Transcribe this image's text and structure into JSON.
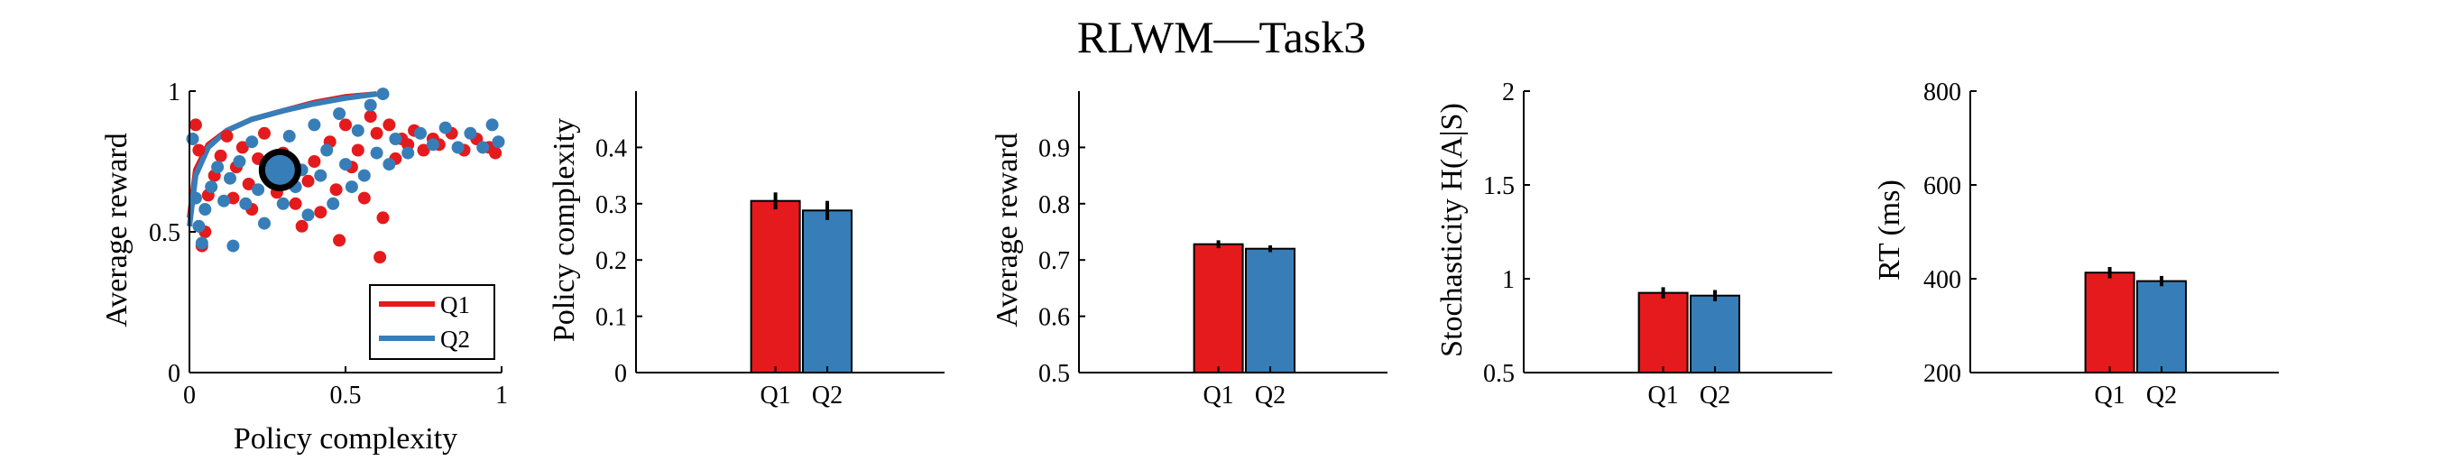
{
  "figure": {
    "title": "RLWM—Task3"
  },
  "colors": {
    "Q1": "#E41A1C",
    "Q2": "#377EB8",
    "marker": "#000000"
  },
  "chart_data": [
    {
      "type": "scatter",
      "xlabel": "Policy complexity",
      "ylabel": "Average reward",
      "xlim": [
        0,
        1
      ],
      "ylim": [
        0,
        1
      ],
      "xticks": [
        "0",
        "0.5",
        "1"
      ],
      "yticks": [
        "0",
        "0.5",
        "1"
      ],
      "legend": {
        "position": "bottom-right",
        "entries": [
          "Q1",
          "Q2"
        ]
      },
      "mean_marker": {
        "x": 0.29,
        "y": 0.72
      },
      "curves": [
        {
          "name": "Q1",
          "points": [
            [
              0.0,
              0.55
            ],
            [
              0.02,
              0.72
            ],
            [
              0.06,
              0.81
            ],
            [
              0.12,
              0.86
            ],
            [
              0.2,
              0.9
            ],
            [
              0.3,
              0.93
            ],
            [
              0.4,
              0.96
            ],
            [
              0.5,
              0.98
            ],
            [
              0.6,
              0.99
            ]
          ]
        },
        {
          "name": "Q2",
          "points": [
            [
              0.0,
              0.52
            ],
            [
              0.02,
              0.7
            ],
            [
              0.06,
              0.8
            ],
            [
              0.12,
              0.86
            ],
            [
              0.2,
              0.9
            ],
            [
              0.3,
              0.93
            ],
            [
              0.4,
              0.955
            ],
            [
              0.5,
              0.975
            ],
            [
              0.6,
              0.99
            ]
          ]
        }
      ],
      "series": [
        {
          "name": "Q1",
          "points": [
            [
              0.02,
              0.88
            ],
            [
              0.03,
              0.79
            ],
            [
              0.04,
              0.45
            ],
            [
              0.05,
              0.5
            ],
            [
              0.06,
              0.63
            ],
            [
              0.08,
              0.7
            ],
            [
              0.1,
              0.77
            ],
            [
              0.12,
              0.84
            ],
            [
              0.14,
              0.62
            ],
            [
              0.15,
              0.73
            ],
            [
              0.17,
              0.8
            ],
            [
              0.19,
              0.67
            ],
            [
              0.2,
              0.58
            ],
            [
              0.22,
              0.76
            ],
            [
              0.24,
              0.85
            ],
            [
              0.26,
              0.69
            ],
            [
              0.28,
              0.64
            ],
            [
              0.3,
              0.78
            ],
            [
              0.32,
              0.71
            ],
            [
              0.34,
              0.6
            ],
            [
              0.36,
              0.52
            ],
            [
              0.38,
              0.68
            ],
            [
              0.4,
              0.75
            ],
            [
              0.42,
              0.57
            ],
            [
              0.45,
              0.82
            ],
            [
              0.47,
              0.65
            ],
            [
              0.48,
              0.47
            ],
            [
              0.5,
              0.88
            ],
            [
              0.52,
              0.73
            ],
            [
              0.54,
              0.79
            ],
            [
              0.56,
              0.62
            ],
            [
              0.58,
              0.91
            ],
            [
              0.6,
              0.85
            ],
            [
              0.61,
              0.41
            ],
            [
              0.62,
              0.55
            ],
            [
              0.64,
              0.88
            ],
            [
              0.66,
              0.76
            ],
            [
              0.68,
              0.83
            ],
            [
              0.7,
              0.81
            ],
            [
              0.72,
              0.86
            ],
            [
              0.75,
              0.79
            ],
            [
              0.78,
              0.83
            ],
            [
              0.8,
              0.81
            ],
            [
              0.84,
              0.85
            ],
            [
              0.88,
              0.79
            ],
            [
              0.92,
              0.83
            ],
            [
              0.96,
              0.8
            ],
            [
              0.98,
              0.78
            ]
          ]
        },
        {
          "name": "Q2",
          "points": [
            [
              0.01,
              0.83
            ],
            [
              0.02,
              0.62
            ],
            [
              0.03,
              0.52
            ],
            [
              0.04,
              0.46
            ],
            [
              0.05,
              0.58
            ],
            [
              0.07,
              0.66
            ],
            [
              0.09,
              0.73
            ],
            [
              0.11,
              0.61
            ],
            [
              0.13,
              0.69
            ],
            [
              0.14,
              0.45
            ],
            [
              0.16,
              0.75
            ],
            [
              0.18,
              0.6
            ],
            [
              0.2,
              0.82
            ],
            [
              0.22,
              0.65
            ],
            [
              0.24,
              0.53
            ],
            [
              0.26,
              0.7
            ],
            [
              0.28,
              0.76
            ],
            [
              0.3,
              0.6
            ],
            [
              0.32,
              0.84
            ],
            [
              0.34,
              0.66
            ],
            [
              0.36,
              0.72
            ],
            [
              0.38,
              0.56
            ],
            [
              0.4,
              0.88
            ],
            [
              0.42,
              0.7
            ],
            [
              0.44,
              0.79
            ],
            [
              0.46,
              0.6
            ],
            [
              0.48,
              0.92
            ],
            [
              0.5,
              0.74
            ],
            [
              0.52,
              0.66
            ],
            [
              0.54,
              0.86
            ],
            [
              0.56,
              0.7
            ],
            [
              0.58,
              0.95
            ],
            [
              0.6,
              0.78
            ],
            [
              0.62,
              0.99
            ],
            [
              0.64,
              0.74
            ],
            [
              0.66,
              0.83
            ],
            [
              0.7,
              0.78
            ],
            [
              0.74,
              0.85
            ],
            [
              0.78,
              0.81
            ],
            [
              0.82,
              0.87
            ],
            [
              0.86,
              0.8
            ],
            [
              0.9,
              0.85
            ],
            [
              0.94,
              0.8
            ],
            [
              0.97,
              0.88
            ],
            [
              0.99,
              0.82
            ]
          ]
        }
      ]
    },
    {
      "type": "bar",
      "ylabel": "Policy complexity",
      "categories": [
        "Q1",
        "Q2"
      ],
      "values": [
        0.305,
        0.288
      ],
      "errors": [
        0.015,
        0.017
      ],
      "ylim": [
        0,
        0.5
      ],
      "yticks": [
        0,
        0.1,
        0.2,
        0.3,
        0.4
      ],
      "ytick_labels": [
        "0",
        "0.1",
        "0.2",
        "0.3",
        "0.4"
      ]
    },
    {
      "type": "bar",
      "ylabel": "Average reward",
      "categories": [
        "Q1",
        "Q2"
      ],
      "values": [
        0.728,
        0.72
      ],
      "errors": [
        0.007,
        0.006
      ],
      "ylim": [
        0.5,
        1.0
      ],
      "yticks": [
        0.5,
        0.6,
        0.7,
        0.8,
        0.9
      ],
      "ytick_labels": [
        "0.5",
        "0.6",
        "0.7",
        "0.8",
        "0.9"
      ]
    },
    {
      "type": "bar",
      "ylabel": "Stochasticity H(A|S)",
      "categories": [
        "Q1",
        "Q2"
      ],
      "values": [
        0.925,
        0.91
      ],
      "errors": [
        0.03,
        0.03
      ],
      "ylim": [
        0.5,
        2.0
      ],
      "yticks": [
        0.5,
        1.0,
        1.5,
        2.0
      ],
      "ytick_labels": [
        "0.5",
        "1",
        "1.5",
        "2"
      ]
    },
    {
      "type": "bar",
      "ylabel": "RT (ms)",
      "categories": [
        "Q1",
        "Q2"
      ],
      "values": [
        413,
        395
      ],
      "errors": [
        12,
        11
      ],
      "ylim": [
        200,
        800
      ],
      "yticks": [
        200,
        400,
        600,
        800
      ],
      "ytick_labels": [
        "200",
        "400",
        "600",
        "800"
      ]
    }
  ]
}
